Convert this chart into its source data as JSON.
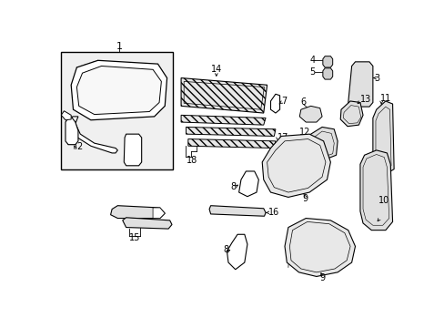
{
  "background_color": "#ffffff",
  "line_color": "#000000",
  "fig_width": 4.89,
  "fig_height": 3.6,
  "dpi": 100,
  "label_fontsize": 7
}
